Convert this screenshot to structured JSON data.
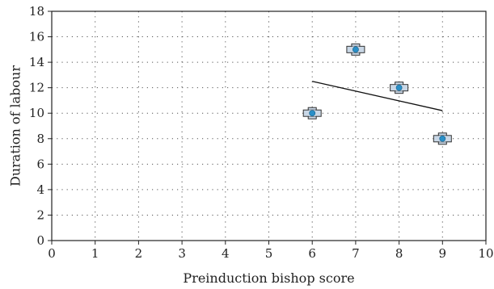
{
  "chart_data": {
    "type": "scatter",
    "title": "",
    "xlabel": "Preinduction bishop score",
    "ylabel": "Duration of labour",
    "xlim": [
      0,
      10
    ],
    "ylim": [
      0,
      18
    ],
    "x_ticks": [
      0,
      1,
      2,
      3,
      4,
      5,
      6,
      7,
      8,
      9,
      10
    ],
    "y_ticks": [
      0,
      2,
      4,
      6,
      8,
      10,
      12,
      14,
      16,
      18
    ],
    "grid": "dotted",
    "legend": "none",
    "series": [
      {
        "points": [
          {
            "x": 6,
            "y": 10
          },
          {
            "x": 7,
            "y": 15
          },
          {
            "x": 8,
            "y": 12
          },
          {
            "x": 9,
            "y": 8
          }
        ]
      }
    ],
    "trendline": {
      "x": [
        6,
        9
      ],
      "y": [
        12.5,
        10.2
      ]
    },
    "colors": {
      "marker_fill": "#2a8fc7",
      "marker_square": "#c9d7e6",
      "marker_edge": "#333333",
      "line": "#111111",
      "grid": "#555555"
    }
  }
}
